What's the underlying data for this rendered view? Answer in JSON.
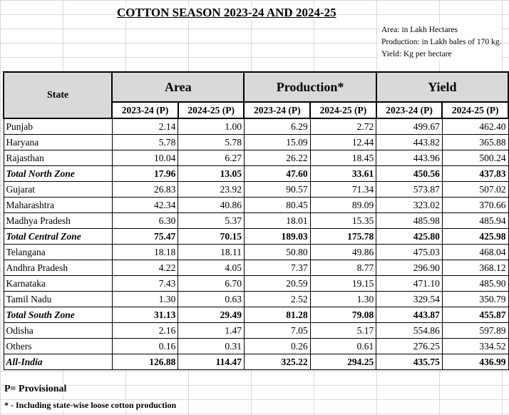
{
  "title": "COTTON SEASON 2023-24 AND 2024-25",
  "units": {
    "area": "Area: in Lakh Hectares",
    "production": "Production: in Lakh bales of 170 kg.",
    "yield": "Yield: Kg per hectare"
  },
  "table": {
    "state_header": "State",
    "groups": [
      "Area",
      "Production*",
      "Yield"
    ],
    "subheaders": [
      "2023-24 (P)",
      "2024-25 (P)",
      "2023-24 (P)",
      "2024-25 (P)",
      "2023-24 (P)",
      "2024-25 (P)"
    ],
    "rows": [
      {
        "name": "Punjab",
        "total": false,
        "v": [
          "2.14",
          "1.00",
          "6.29",
          "2.72",
          "499.67",
          "462.40"
        ]
      },
      {
        "name": "Haryana",
        "total": false,
        "v": [
          "5.78",
          "5.78",
          "15.09",
          "12.44",
          "443.82",
          "365.88"
        ]
      },
      {
        "name": "Rajasthan",
        "total": false,
        "v": [
          "10.04",
          "6.27",
          "26.22",
          "18.45",
          "443.96",
          "500.24"
        ]
      },
      {
        "name": "Total North Zone",
        "total": true,
        "v": [
          "17.96",
          "13.05",
          "47.60",
          "33.61",
          "450.56",
          "437.83"
        ]
      },
      {
        "name": "Gujarat",
        "total": false,
        "v": [
          "26.83",
          "23.92",
          "90.57",
          "71.34",
          "573.87",
          "507.02"
        ]
      },
      {
        "name": "Maharashtra",
        "total": false,
        "v": [
          "42.34",
          "40.86",
          "80.45",
          "89.09",
          "323.02",
          "370.66"
        ]
      },
      {
        "name": "Madhya Pradesh",
        "total": false,
        "v": [
          "6.30",
          "5.37",
          "18.01",
          "15.35",
          "485.98",
          "485.94"
        ]
      },
      {
        "name": "Total Central Zone",
        "total": true,
        "v": [
          "75.47",
          "70.15",
          "189.03",
          "175.78",
          "425.80",
          "425.98"
        ]
      },
      {
        "name": "Telangana",
        "total": false,
        "v": [
          "18.18",
          "18.11",
          "50.80",
          "49.86",
          "475.03",
          "468.04"
        ]
      },
      {
        "name": "Andhra Pradesh",
        "total": false,
        "v": [
          "4.22",
          "4.05",
          "7.37",
          "8.77",
          "296.90",
          "368.12"
        ]
      },
      {
        "name": "Karnataka",
        "total": false,
        "v": [
          "7.43",
          "6.70",
          "20.59",
          "19.15",
          "471.10",
          "485.90"
        ]
      },
      {
        "name": "Tamil Nadu",
        "total": false,
        "v": [
          "1.30",
          "0.63",
          "2.52",
          "1.30",
          "329.54",
          "350.79"
        ]
      },
      {
        "name": "Total South Zone",
        "total": true,
        "v": [
          "31.13",
          "29.49",
          "81.28",
          "79.08",
          "443.87",
          "455.87"
        ]
      },
      {
        "name": "Odisha",
        "total": false,
        "v": [
          "2.16",
          "1.47",
          "7.05",
          "5.17",
          "554.86",
          "597.89"
        ]
      },
      {
        "name": "Others",
        "total": false,
        "v": [
          "0.16",
          "0.31",
          "0.26",
          "0.61",
          "276.25",
          "334.52"
        ]
      },
      {
        "name": "All-India",
        "total": true,
        "v": [
          "126.88",
          "114.47",
          "325.22",
          "294.25",
          "435.75",
          "436.99"
        ]
      }
    ]
  },
  "footnotes": {
    "provisional": "P= Provisional",
    "production_note": "* - Including state-wise loose cotton production"
  },
  "colors": {
    "header_bg": "#d9d9d9",
    "gridline": "#d9d9d9"
  }
}
